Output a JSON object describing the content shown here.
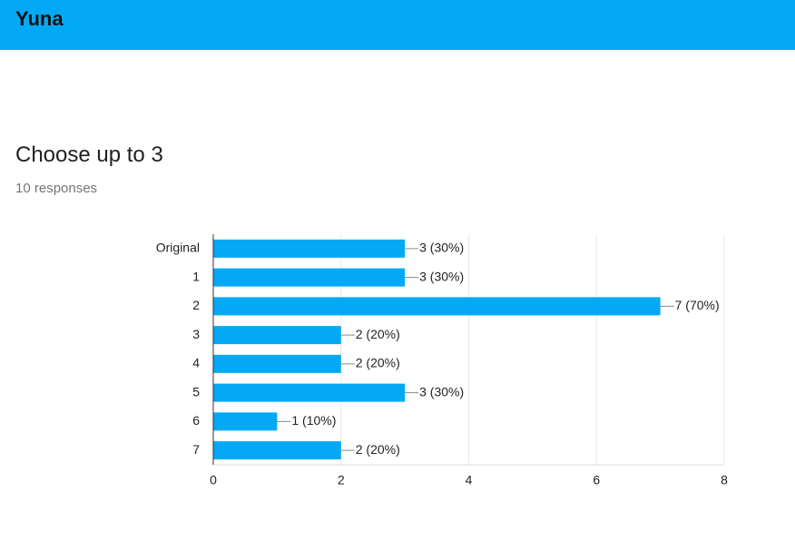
{
  "header": {
    "title": "Yuna"
  },
  "question": {
    "title": "Choose up to 3",
    "responses": "10 responses"
  },
  "chart_data": {
    "type": "hbar",
    "categories": [
      "Original",
      "1",
      "2",
      "3",
      "4",
      "5",
      "6",
      "7"
    ],
    "values": [
      3,
      3,
      7,
      2,
      2,
      3,
      1,
      2
    ],
    "value_labels": [
      "3 (30%)",
      "3 (30%)",
      "7 (70%)",
      "2 (20%)",
      "2 (20%)",
      "3 (30%)",
      "1 (10%)",
      "2 (20%)"
    ],
    "color": "#03a9f4",
    "xlim": [
      0,
      8
    ],
    "xticks": [
      0,
      2,
      4,
      6,
      8
    ],
    "grid": true
  }
}
